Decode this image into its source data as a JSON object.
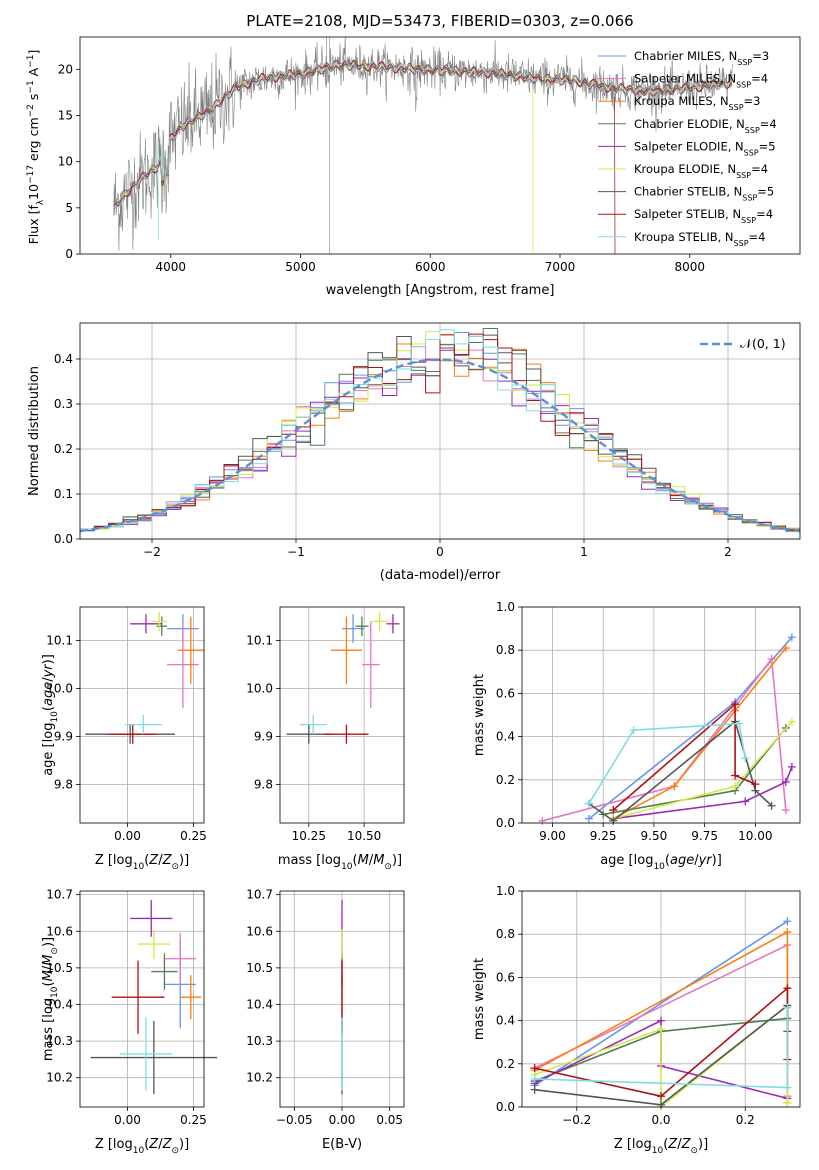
{
  "figure": {
    "title": "PLATE=2108, MJD=53473, FIBERID=0303, z=0.066"
  },
  "colors": {
    "Chabrier MILES": "#6495ed",
    "Salpeter MILES": "#e377c2",
    "Kroupa MILES": "#ff7f0e",
    "Chabrier ELODIE": "#4f7f4f",
    "Salpeter ELODIE": "#9a2ab5",
    "Kroupa ELODIE": "#d4e84a",
    "Chabrier STELIB": "#555555",
    "Salpeter STELIB": "#b01010",
    "Kroupa STELIB": "#7fdde0"
  },
  "chart_data": [
    {
      "id": "spectrum",
      "type": "line",
      "xlabel": "wavelength [Angstrom, rest frame]",
      "ylabel": "Flux [f_λ10^-17 erg cm^-2 s^-1 A^-1]",
      "xlim": [
        3300,
        8850
      ],
      "ylim": [
        0,
        23.5
      ],
      "xticks": [
        4000,
        5000,
        6000,
        7000,
        8000
      ],
      "yticks": [
        0,
        5,
        10,
        15,
        20
      ],
      "legend_position": "upper right",
      "data_anchor_points": {
        "x": [
          3560,
          3650,
          3800,
          3900,
          4000,
          4100,
          4300,
          4500,
          4700,
          5000,
          5300,
          5600,
          5900,
          6200,
          6500,
          6800,
          7100,
          7400,
          7700,
          8000,
          8300
        ],
        "y": [
          5.0,
          6.5,
          8.5,
          9.5,
          12.5,
          14.0,
          15.5,
          18.0,
          19.0,
          19.5,
          20.5,
          20.3,
          20.0,
          19.8,
          19.6,
          19.0,
          18.8,
          18.0,
          17.6,
          18.0,
          18.5
        ]
      },
      "series": [
        {
          "name": "Chabrier MILES, N_SSP=3"
        },
        {
          "name": "Salpeter MILES, N_SSP=4"
        },
        {
          "name": "Kroupa MILES, N_SSP=3"
        },
        {
          "name": "Chabrier ELODIE, N_SSP=4"
        },
        {
          "name": "Salpeter ELODIE, N_SSP=5"
        },
        {
          "name": "Kroupa ELODIE, N_SSP=4"
        },
        {
          "name": "Chabrier STELIB, N_SSP=5"
        },
        {
          "name": "Salpeter STELIB, N_SSP=4"
        },
        {
          "name": "Kroupa STELIB, N_SSP=4"
        }
      ]
    },
    {
      "id": "residuals",
      "type": "step histogram",
      "xlabel": "(data-model)/error",
      "ylabel": "Normed distribution",
      "xlim": [
        -2.5,
        2.5
      ],
      "ylim": [
        0,
        0.48
      ],
      "xticks": [
        -2,
        -1,
        0,
        1,
        2
      ],
      "yticks": [
        0.0,
        0.1,
        0.2,
        0.3,
        0.4
      ],
      "grid": true,
      "legend_position": "upper right",
      "reference_curve": {
        "name": "𝒩(0, 1)",
        "mean": 0,
        "sigma": 1
      },
      "bin_width": 0.1
    },
    {
      "id": "z-age",
      "type": "errorbar",
      "xlabel": "Z [log10(Z/Z☉)]",
      "ylabel": "age  [log10(age/yr)]",
      "xlim": [
        -0.18,
        0.29
      ],
      "ylim": [
        9.72,
        10.17
      ],
      "xticks": [
        0.0,
        0.25
      ],
      "yticks": [
        9.8,
        9.9,
        10.0,
        10.1
      ],
      "grid": true,
      "points": [
        {
          "series": "Chabrier MILES",
          "x": 0.21,
          "y": 10.125,
          "xerr": 0.06,
          "yerr": 0.03
        },
        {
          "series": "Salpeter MILES",
          "x": 0.21,
          "y": 10.05,
          "xerr": 0.06,
          "yerr": 0.09
        },
        {
          "series": "Kroupa MILES",
          "x": 0.24,
          "y": 10.08,
          "xerr": 0.05,
          "yerr": 0.07
        },
        {
          "series": "Chabrier ELODIE",
          "x": 0.13,
          "y": 10.13,
          "xerr": 0.02,
          "yerr": 0.02
        },
        {
          "series": "Salpeter ELODIE",
          "x": 0.07,
          "y": 10.135,
          "xerr": 0.06,
          "yerr": 0.02
        },
        {
          "series": "Kroupa ELODIE",
          "x": 0.12,
          "y": 10.14,
          "xerr": 0.03,
          "yerr": 0.02
        },
        {
          "series": "Chabrier STELIB",
          "x": 0.01,
          "y": 9.905,
          "xerr": 0.17,
          "yerr": 0.02
        },
        {
          "series": "Salpeter STELIB",
          "x": 0.02,
          "y": 9.905,
          "xerr": 0.09,
          "yerr": 0.02
        },
        {
          "series": "Kroupa STELIB",
          "x": 0.06,
          "y": 9.925,
          "xerr": 0.07,
          "yerr": 0.02
        }
      ]
    },
    {
      "id": "mass-age",
      "type": "errorbar",
      "xlabel": "mass [log10(M/M☉)]",
      "ylabel": "",
      "xlim": [
        10.12,
        10.68
      ],
      "ylim": [
        9.72,
        10.17
      ],
      "xticks": [
        10.25,
        10.5
      ],
      "yticks": [
        9.8,
        9.9,
        10.0,
        10.1
      ],
      "grid": true,
      "points": [
        {
          "series": "Chabrier MILES",
          "x": 10.45,
          "y": 10.125,
          "xerr": 0.05,
          "yerr": 0.03
        },
        {
          "series": "Salpeter MILES",
          "x": 10.53,
          "y": 10.05,
          "xerr": 0.04,
          "yerr": 0.09
        },
        {
          "series": "Kroupa MILES",
          "x": 10.42,
          "y": 10.08,
          "xerr": 0.07,
          "yerr": 0.07
        },
        {
          "series": "Chabrier ELODIE",
          "x": 10.49,
          "y": 10.13,
          "xerr": 0.03,
          "yerr": 0.02
        },
        {
          "series": "Salpeter ELODIE",
          "x": 10.63,
          "y": 10.135,
          "xerr": 0.03,
          "yerr": 0.02
        },
        {
          "series": "Kroupa ELODIE",
          "x": 10.57,
          "y": 10.14,
          "xerr": 0.04,
          "yerr": 0.02
        },
        {
          "series": "Chabrier STELIB",
          "x": 10.25,
          "y": 9.905,
          "xerr": 0.1,
          "yerr": 0.02
        },
        {
          "series": "Salpeter STELIB",
          "x": 10.42,
          "y": 9.905,
          "xerr": 0.1,
          "yerr": 0.02
        },
        {
          "series": "Kroupa STELIB",
          "x": 10.27,
          "y": 9.925,
          "xerr": 0.06,
          "yerr": 0.02
        }
      ]
    },
    {
      "id": "age-weight",
      "type": "line",
      "xlabel": "age  [log10(age/yr)]",
      "ylabel": "mass weight",
      "xlim": [
        8.85,
        10.22
      ],
      "ylim": [
        0,
        1.0
      ],
      "xticks": [
        9.0,
        9.25,
        9.5,
        9.75,
        10.0
      ],
      "yticks": [
        0.0,
        0.2,
        0.4,
        0.6,
        0.8,
        1.0
      ],
      "grid": true,
      "series": [
        {
          "name": "Chabrier MILES",
          "x": [
            9.18,
            9.9,
            10.18
          ],
          "y": [
            0.02,
            0.56,
            0.86
          ]
        },
        {
          "name": "Salpeter MILES",
          "x": [
            8.95,
            9.6,
            10.08,
            10.15
          ],
          "y": [
            0.01,
            0.17,
            0.76,
            0.06
          ]
        },
        {
          "name": "Kroupa MILES",
          "x": [
            9.3,
            9.6,
            9.9,
            10.15
          ],
          "y": [
            0.02,
            0.17,
            0.52,
            0.81
          ]
        },
        {
          "name": "Chabrier ELODIE",
          "x": [
            9.25,
            9.9,
            10.15
          ],
          "y": [
            0.04,
            0.15,
            0.44
          ]
        },
        {
          "name": "Salpeter ELODIE",
          "x": [
            9.3,
            9.95,
            10.15,
            10.18
          ],
          "y": [
            0.02,
            0.1,
            0.19,
            0.26
          ]
        },
        {
          "name": "Kroupa ELODIE",
          "x": [
            9.3,
            9.9,
            10.18
          ],
          "y": [
            0.02,
            0.17,
            0.47
          ]
        },
        {
          "name": "Chabrier STELIB",
          "x": [
            9.18,
            9.3,
            9.9,
            10.0,
            10.08
          ],
          "y": [
            0.09,
            0.01,
            0.47,
            0.15,
            0.08
          ]
        },
        {
          "name": "Salpeter STELIB",
          "x": [
            9.3,
            9.9,
            9.9,
            10.0
          ],
          "y": [
            0.06,
            0.55,
            0.22,
            0.18
          ]
        },
        {
          "name": "Kroupa STELIB",
          "x": [
            9.18,
            9.4,
            9.92,
            9.95
          ],
          "y": [
            0.09,
            0.43,
            0.46,
            0.3
          ]
        }
      ]
    },
    {
      "id": "z-mass",
      "type": "errorbar",
      "xlabel": "Z [log10(Z/Z☉)]",
      "ylabel": "mass [log10(M/M☉)]",
      "xlim": [
        -0.18,
        0.29
      ],
      "ylim": [
        10.12,
        10.71
      ],
      "xticks": [
        0.0,
        0.25
      ],
      "yticks": [
        10.2,
        10.3,
        10.4,
        10.5,
        10.6,
        10.7
      ],
      "grid": true,
      "points": [
        {
          "series": "Chabrier MILES",
          "x": 0.2,
          "y": 10.455,
          "xerr": 0.06,
          "yerr": 0.12
        },
        {
          "series": "Salpeter MILES",
          "x": 0.2,
          "y": 10.525,
          "xerr": 0.06,
          "yerr": 0.07
        },
        {
          "series": "Kroupa MILES",
          "x": 0.24,
          "y": 10.42,
          "xerr": 0.04,
          "yerr": 0.06
        },
        {
          "series": "Chabrier ELODIE",
          "x": 0.14,
          "y": 10.49,
          "xerr": 0.05,
          "yerr": 0.05
        },
        {
          "series": "Salpeter ELODIE",
          "x": 0.09,
          "y": 10.635,
          "xerr": 0.08,
          "yerr": 0.05
        },
        {
          "series": "Kroupa ELODIE",
          "x": 0.1,
          "y": 10.565,
          "xerr": 0.06,
          "yerr": 0.04
        },
        {
          "series": "Chabrier STELIB",
          "x": 0.1,
          "y": 10.255,
          "xerr": 0.24,
          "yerr": 0.1
        },
        {
          "series": "Salpeter STELIB",
          "x": 0.04,
          "y": 10.42,
          "xerr": 0.1,
          "yerr": 0.1
        },
        {
          "series": "Kroupa STELIB",
          "x": 0.07,
          "y": 10.265,
          "xerr": 0.1,
          "yerr": 0.1
        }
      ]
    },
    {
      "id": "ebv-mass",
      "type": "errorbar",
      "xlabel": "E(B-V)",
      "ylabel": "",
      "xlim": [
        -0.065,
        0.065
      ],
      "ylim": [
        10.12,
        10.71
      ],
      "xticks": [
        -0.05,
        0.0,
        0.05
      ],
      "yticks": [
        10.2,
        10.3,
        10.4,
        10.5,
        10.6,
        10.7
      ],
      "grid": true,
      "points": [
        {
          "series": "Chabrier MILES",
          "x": 0,
          "y": 10.455,
          "xerr": 0,
          "yerr": 0.12
        },
        {
          "series": "Salpeter MILES",
          "x": 0,
          "y": 10.525,
          "xerr": 0,
          "yerr": 0.07
        },
        {
          "series": "Kroupa MILES",
          "x": 0,
          "y": 10.42,
          "xerr": 0,
          "yerr": 0.06
        },
        {
          "series": "Chabrier ELODIE",
          "x": 0,
          "y": 10.49,
          "xerr": 0,
          "yerr": 0.05
        },
        {
          "series": "Salpeter ELODIE",
          "x": 0,
          "y": 10.635,
          "xerr": 0,
          "yerr": 0.05
        },
        {
          "series": "Kroupa ELODIE",
          "x": 0,
          "y": 10.565,
          "xerr": 0,
          "yerr": 0.04
        },
        {
          "series": "Chabrier STELIB",
          "x": 0,
          "y": 10.255,
          "xerr": 0,
          "yerr": 0.1
        },
        {
          "series": "Salpeter STELIB",
          "x": 0,
          "y": 10.42,
          "xerr": 0,
          "yerr": 0.1
        },
        {
          "series": "Kroupa STELIB",
          "x": 0,
          "y": 10.265,
          "xerr": 0,
          "yerr": 0.1
        }
      ]
    },
    {
      "id": "z-weight",
      "type": "line",
      "xlabel": "Z [log10(Z/Z☉)]",
      "ylabel": "mass weight",
      "xlim": [
        -0.33,
        0.33
      ],
      "ylim": [
        0,
        1.0
      ],
      "xticks": [
        -0.2,
        0.0,
        0.2
      ],
      "yticks": [
        0.0,
        0.2,
        0.4,
        0.6,
        0.8,
        1.0
      ],
      "grid": true,
      "series": [
        {
          "name": "Chabrier MILES",
          "x": [
            -0.3,
            0.3
          ],
          "y": [
            0.1,
            0.86
          ]
        },
        {
          "name": "Salpeter MILES",
          "x": [
            -0.3,
            0.3,
            0.3
          ],
          "y": [
            0.18,
            0.75,
            0.05
          ]
        },
        {
          "name": "Kroupa MILES",
          "x": [
            -0.3,
            0.3,
            0.3
          ],
          "y": [
            0.17,
            0.81,
            0.02
          ]
        },
        {
          "name": "Chabrier ELODIE",
          "x": [
            -0.3,
            0.0,
            0.3
          ],
          "y": [
            0.12,
            0.35,
            0.41
          ]
        },
        {
          "name": "Salpeter ELODIE",
          "x": [
            -0.3,
            0.0,
            0.0,
            0.3
          ],
          "y": [
            0.11,
            0.4,
            0.19,
            0.04
          ]
        },
        {
          "name": "Kroupa ELODIE",
          "x": [
            -0.3,
            0.0,
            0.0,
            0.3,
            0.3
          ],
          "y": [
            0.15,
            0.36,
            0.0,
            0.47,
            0.02
          ]
        },
        {
          "name": "Chabrier STELIB",
          "x": [
            -0.3,
            0.0,
            0.3,
            0.3
          ],
          "y": [
            0.08,
            0.01,
            0.47,
            0.35
          ]
        },
        {
          "name": "Salpeter STELIB",
          "x": [
            -0.3,
            0.0,
            0.3,
            0.3
          ],
          "y": [
            0.18,
            0.05,
            0.55,
            0.22
          ]
        },
        {
          "name": "Kroupa STELIB",
          "x": [
            -0.3,
            0.3,
            0.3
          ],
          "y": [
            0.13,
            0.09,
            0.46
          ]
        }
      ]
    }
  ]
}
